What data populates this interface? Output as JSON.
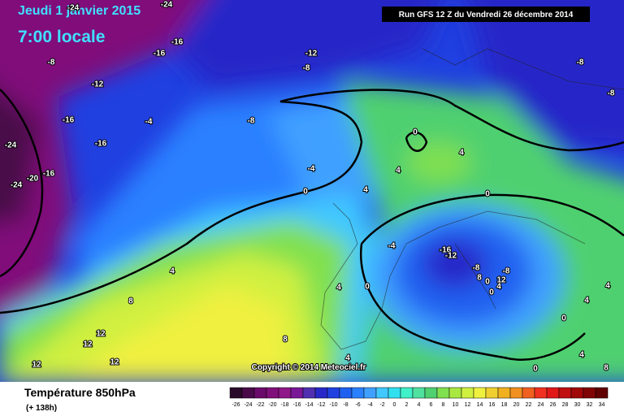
{
  "header": {
    "date": "Jeudi 1 janvier 2015",
    "time": "7:00 locale",
    "run": "Run GFS 12 Z du Vendredi 26 décembre 2014"
  },
  "map": {
    "contour_labels": [
      -24,
      -24,
      -16,
      -16,
      -12,
      -8,
      -8,
      -8,
      -12,
      -8,
      -16,
      -4,
      -8,
      -16,
      -24,
      -16,
      -20,
      -24,
      0,
      4,
      4,
      -4,
      4,
      0,
      0,
      -4,
      -16,
      -12,
      -8,
      -8,
      8,
      12,
      0,
      4,
      0,
      4,
      4,
      0,
      4,
      8,
      4,
      0,
      12,
      12,
      8,
      4,
      4,
      0,
      12,
      12,
      8
    ],
    "copyright": "Copyright © 2014 Meteociel.fr"
  },
  "footer": {
    "title": "Température 850hPa",
    "lead": "(+ 138h)"
  },
  "legend": {
    "ticks": [
      -26,
      -24,
      -22,
      -20,
      -18,
      -16,
      -14,
      -12,
      -10,
      -8,
      -6,
      -4,
      -2,
      0,
      2,
      4,
      6,
      8,
      10,
      12,
      14,
      16,
      18,
      20,
      22,
      24,
      26,
      28,
      30,
      32,
      34
    ],
    "colors": [
      "#2a0a2a",
      "#4a0a4a",
      "#6a0a6a",
      "#80107a",
      "#901888",
      "#7a1898",
      "#5030b0",
      "#2828c8",
      "#2040e0",
      "#2060f0",
      "#2a80ff",
      "#40a0ff",
      "#40c8ff",
      "#30e0f0",
      "#40f0c8",
      "#50e0a0",
      "#50d070",
      "#80e050",
      "#a8e840",
      "#d0f040",
      "#f0f040",
      "#f0d030",
      "#f0b020",
      "#f09020",
      "#f06020",
      "#f03020",
      "#e01818",
      "#c01010",
      "#a00808",
      "#800404",
      "#600000"
    ]
  }
}
